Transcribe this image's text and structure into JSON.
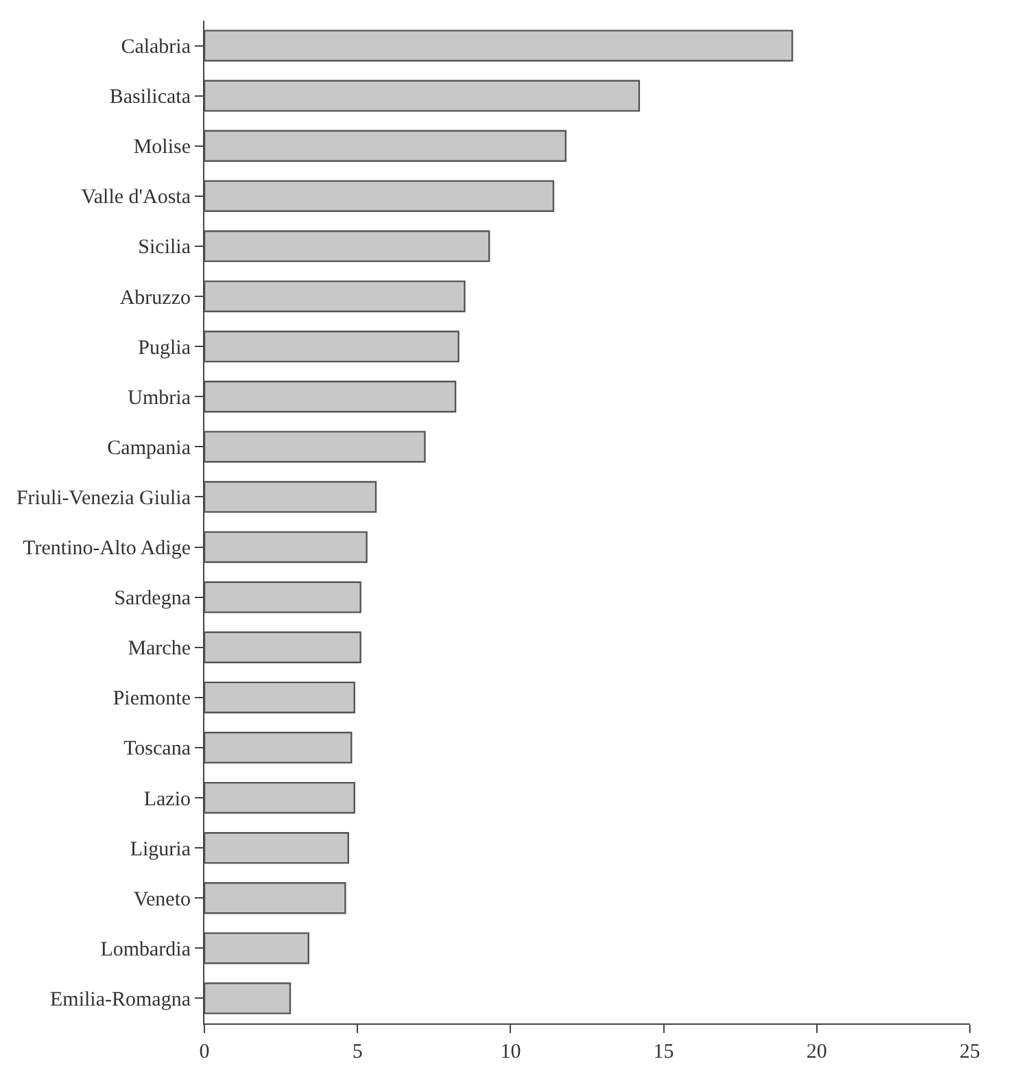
{
  "chart_data": {
    "type": "bar",
    "orientation": "horizontal",
    "categories": [
      "Calabria",
      "Basilicata",
      "Molise",
      "Valle d'Aosta",
      "Sicilia",
      "Abruzzo",
      "Puglia",
      "Umbria",
      "Campania",
      "Friuli-Venezia Giulia",
      "Trentino-Alto Adige",
      "Sardegna",
      "Marche",
      "Piemonte",
      "Toscana",
      "Lazio",
      "Liguria",
      "Veneto",
      "Lombardia",
      "Emilia-Romagna"
    ],
    "values": [
      19.2,
      14.2,
      11.8,
      11.4,
      9.3,
      8.5,
      8.3,
      8.2,
      7.2,
      5.6,
      5.3,
      5.1,
      5.1,
      4.9,
      4.8,
      4.9,
      4.7,
      4.6,
      3.4,
      2.8
    ],
    "color": "#c8c8c8",
    "xlim": [
      0,
      25
    ],
    "xticks": [
      0,
      5,
      10,
      15,
      20,
      25
    ]
  }
}
